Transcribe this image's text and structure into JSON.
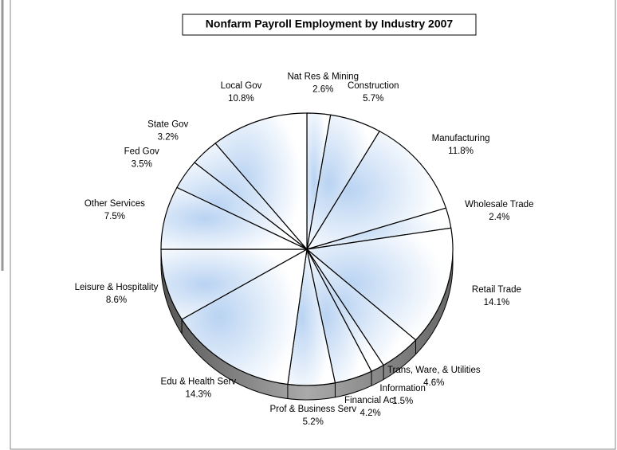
{
  "chart_data": {
    "type": "pie",
    "title": "Nonfarm Payroll Employment by Industry 2007",
    "categories": [
      "Nat Res & Mining",
      "Construction",
      "Manufacturing",
      "Wholesale Trade",
      "Retail Trade",
      "Trans, Ware, & Utilities",
      "Information",
      "Financial Act",
      "Prof & Business Serv",
      "Edu & Health Serv",
      "Leisure & Hospitality",
      "Other Services",
      "Fed Gov",
      "State Gov",
      "Local Gov"
    ],
    "values": [
      2.6,
      5.7,
      11.8,
      2.4,
      14.1,
      4.6,
      1.5,
      4.2,
      5.2,
      14.3,
      8.6,
      7.5,
      3.5,
      3.2,
      10.8
    ],
    "value_labels": [
      "2.6%",
      "5.7%",
      "11.8%",
      "2.4%",
      "14.1%",
      "4.6%",
      "1.5%",
      "4.2%",
      "5.2%",
      "14.3%",
      "8.6%",
      "7.5%",
      "3.5%",
      "3.2%",
      "10.8%"
    ],
    "color": "#b9d3f2"
  }
}
